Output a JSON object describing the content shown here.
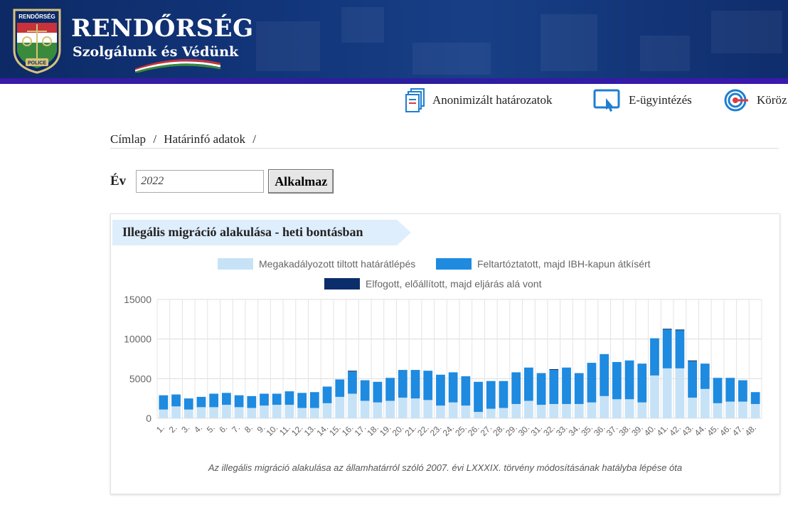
{
  "header": {
    "brand_title": "RENDŐRSÉG",
    "brand_subtitle": "Szolgálunk és Védünk",
    "logo_top_text": "RENDŐRSÉG",
    "logo_bottom_text": "POLICE",
    "bg_color": "#12357a"
  },
  "topnav": {
    "items": [
      {
        "label": "Anonimizált határozatok",
        "icon": "document-icon"
      },
      {
        "label": "E-ügyintézés",
        "icon": "touch-screen-icon"
      },
      {
        "label": "Köröz",
        "icon": "target-icon"
      }
    ]
  },
  "breadcrumb": {
    "items": [
      "Címlap",
      "Határinfó adatok"
    ],
    "separator": "/"
  },
  "filter": {
    "label": "Év",
    "year_value": "2022",
    "button_label": "Alkalmaz"
  },
  "panel": {
    "title": "Illegális migráció alakulása - heti bontásban",
    "footnote": "Az illegális migráció alakulása az államhatárról szóló 2007. évi LXXXIX. törvény módosításának hatályba lépése óta"
  },
  "chart_data": {
    "type": "bar",
    "stacked": true,
    "categories": [
      "1.",
      "2.",
      "3.",
      "4.",
      "5.",
      "6.",
      "7.",
      "8.",
      "9.",
      "10.",
      "11.",
      "12.",
      "13.",
      "14.",
      "15.",
      "16.",
      "17.",
      "18.",
      "19.",
      "20.",
      "21.",
      "22.",
      "23.",
      "24.",
      "25.",
      "26.",
      "27.",
      "28.",
      "29.",
      "30.",
      "31.",
      "32.",
      "33.",
      "34.",
      "35.",
      "36.",
      "37.",
      "38.",
      "39.",
      "40.",
      "41.",
      "42.",
      "43.",
      "44.",
      "45.",
      "46.",
      "47.",
      "48."
    ],
    "series": [
      {
        "name": "Megakadályozott tiltott határátlépés",
        "color": "#c6e2f7",
        "values": [
          1100,
          1500,
          1100,
          1400,
          1400,
          1700,
          1400,
          1300,
          1600,
          1700,
          1700,
          1300,
          1300,
          1900,
          2700,
          3100,
          2200,
          2000,
          2200,
          2600,
          2500,
          2300,
          1600,
          2000,
          1600,
          800,
          1200,
          1300,
          1800,
          2200,
          1700,
          1800,
          1800,
          1800,
          2000,
          2800,
          2400,
          2400,
          2000,
          5400,
          6300,
          6300,
          2600,
          3700,
          1900,
          2100,
          2100,
          1800
        ]
      },
      {
        "name": "Feltartóztatott, majd IBH-kapun átkísért",
        "color": "#1e8ae0",
        "values": [
          1800,
          1500,
          1400,
          1300,
          1700,
          1500,
          1500,
          1500,
          1500,
          1400,
          1700,
          1900,
          2000,
          2100,
          2200,
          2800,
          2600,
          2600,
          2900,
          3500,
          3600,
          3700,
          3900,
          3800,
          3700,
          3800,
          3500,
          3400,
          4000,
          4200,
          4000,
          4300,
          4600,
          3900,
          5000,
          5300,
          4700,
          4900,
          4900,
          4700,
          4900,
          4800,
          4600,
          3200,
          3200,
          3000,
          2700,
          1500
        ]
      },
      {
        "name": "Elfogott, előállított, majd eljárás alá vont",
        "color": "#0c2d6b",
        "values": [
          0,
          0,
          0,
          0,
          0,
          0,
          0,
          0,
          0,
          0,
          0,
          0,
          0,
          0,
          0,
          100,
          0,
          0,
          0,
          0,
          0,
          0,
          0,
          0,
          0,
          0,
          0,
          0,
          0,
          0,
          0,
          100,
          0,
          0,
          0,
          0,
          0,
          0,
          0,
          0,
          100,
          100,
          100,
          0,
          0,
          0,
          0,
          0
        ]
      }
    ],
    "ylim": [
      0,
      15000
    ],
    "yticks": [
      0,
      5000,
      10000,
      15000
    ],
    "grid": true,
    "legend": "top"
  }
}
